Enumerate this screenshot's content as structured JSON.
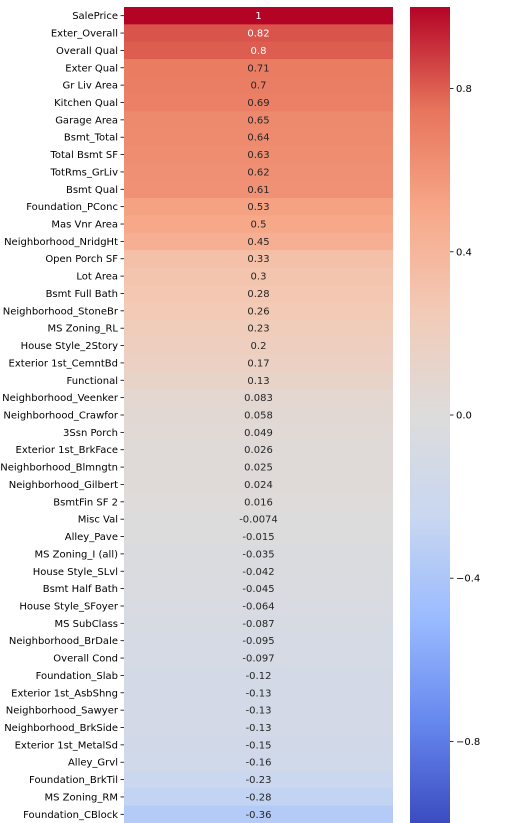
{
  "chart_data": {
    "type": "heatmap",
    "title": "",
    "xlabel": "",
    "ylabel": "",
    "colormap": "coolwarm",
    "colormap_stops": [
      "#3b4cc0",
      "#6788ee",
      "#9abbff",
      "#c9d7f0",
      "#dddcdc",
      "#f2cbb7",
      "#f7a889",
      "#e7745b",
      "#b40426"
    ],
    "vmin": -1,
    "vmax": 1,
    "rows": [
      {
        "label": "SalePrice",
        "value": 1,
        "text": "1"
      },
      {
        "label": "Exter_Overall",
        "value": 0.82,
        "text": "0.82"
      },
      {
        "label": "Overall Qual",
        "value": 0.8,
        "text": "0.8"
      },
      {
        "label": "Exter Qual",
        "value": 0.71,
        "text": "0.71"
      },
      {
        "label": "Gr Liv Area",
        "value": 0.7,
        "text": "0.7"
      },
      {
        "label": "Kitchen Qual",
        "value": 0.69,
        "text": "0.69"
      },
      {
        "label": "Garage Area",
        "value": 0.65,
        "text": "0.65"
      },
      {
        "label": "Bsmt_Total",
        "value": 0.64,
        "text": "0.64"
      },
      {
        "label": "Total Bsmt SF",
        "value": 0.63,
        "text": "0.63"
      },
      {
        "label": "TotRms_GrLiv",
        "value": 0.62,
        "text": "0.62"
      },
      {
        "label": "Bsmt Qual",
        "value": 0.61,
        "text": "0.61"
      },
      {
        "label": "Foundation_PConc",
        "value": 0.53,
        "text": "0.53"
      },
      {
        "label": "Mas Vnr Area",
        "value": 0.5,
        "text": "0.5"
      },
      {
        "label": "Neighborhood_NridgHt",
        "value": 0.45,
        "text": "0.45"
      },
      {
        "label": "Open Porch SF",
        "value": 0.33,
        "text": "0.33"
      },
      {
        "label": "Lot Area",
        "value": 0.3,
        "text": "0.3"
      },
      {
        "label": "Bsmt Full Bath",
        "value": 0.28,
        "text": "0.28"
      },
      {
        "label": "Neighborhood_StoneBr",
        "value": 0.26,
        "text": "0.26"
      },
      {
        "label": "MS Zoning_RL",
        "value": 0.23,
        "text": "0.23"
      },
      {
        "label": "House Style_2Story",
        "value": 0.2,
        "text": "0.2"
      },
      {
        "label": "Exterior 1st_CemntBd",
        "value": 0.17,
        "text": "0.17"
      },
      {
        "label": "Functional",
        "value": 0.13,
        "text": "0.13"
      },
      {
        "label": "Neighborhood_Veenker",
        "value": 0.083,
        "text": "0.083"
      },
      {
        "label": "Neighborhood_Crawfor",
        "value": 0.058,
        "text": "0.058"
      },
      {
        "label": "3Ssn Porch",
        "value": 0.049,
        "text": "0.049"
      },
      {
        "label": "Exterior 1st_BrkFace",
        "value": 0.026,
        "text": "0.026"
      },
      {
        "label": "Neighborhood_Blmngtn",
        "value": 0.025,
        "text": "0.025"
      },
      {
        "label": "Neighborhood_Gilbert",
        "value": 0.024,
        "text": "0.024"
      },
      {
        "label": "BsmtFin SF 2",
        "value": 0.016,
        "text": "0.016"
      },
      {
        "label": "Misc Val",
        "value": -0.0074,
        "text": "-0.0074"
      },
      {
        "label": "Alley_Pave",
        "value": -0.015,
        "text": "-0.015"
      },
      {
        "label": "MS Zoning_I (all)",
        "value": -0.035,
        "text": "-0.035"
      },
      {
        "label": "House Style_SLvl",
        "value": -0.042,
        "text": "-0.042"
      },
      {
        "label": "Bsmt Half Bath",
        "value": -0.045,
        "text": "-0.045"
      },
      {
        "label": "House Style_SFoyer",
        "value": -0.064,
        "text": "-0.064"
      },
      {
        "label": "MS SubClass",
        "value": -0.087,
        "text": "-0.087"
      },
      {
        "label": "Neighborhood_BrDale",
        "value": -0.095,
        "text": "-0.095"
      },
      {
        "label": "Overall Cond",
        "value": -0.097,
        "text": "-0.097"
      },
      {
        "label": "Foundation_Slab",
        "value": -0.12,
        "text": "-0.12"
      },
      {
        "label": "Exterior 1st_AsbShng",
        "value": -0.13,
        "text": "-0.13"
      },
      {
        "label": "Neighborhood_Sawyer",
        "value": -0.13,
        "text": "-0.13"
      },
      {
        "label": "Neighborhood_BrkSide",
        "value": -0.13,
        "text": "-0.13"
      },
      {
        "label": "Exterior 1st_MetalSd",
        "value": -0.15,
        "text": "-0.15"
      },
      {
        "label": "Alley_Grvl",
        "value": -0.16,
        "text": "-0.16"
      },
      {
        "label": "Foundation_BrkTil",
        "value": -0.23,
        "text": "-0.23"
      },
      {
        "label": "MS Zoning_RM",
        "value": -0.28,
        "text": "-0.28"
      },
      {
        "label": "Foundation_CBlock",
        "value": -0.36,
        "text": "-0.36"
      }
    ],
    "colorbar": {
      "ticks": [
        {
          "value": 0.8,
          "label": "0.8"
        },
        {
          "value": 0.4,
          "label": "0.4"
        },
        {
          "value": 0.0,
          "label": "0.0"
        },
        {
          "value": -0.4,
          "label": "−0.4"
        },
        {
          "value": -0.8,
          "label": "−0.8"
        }
      ]
    }
  }
}
